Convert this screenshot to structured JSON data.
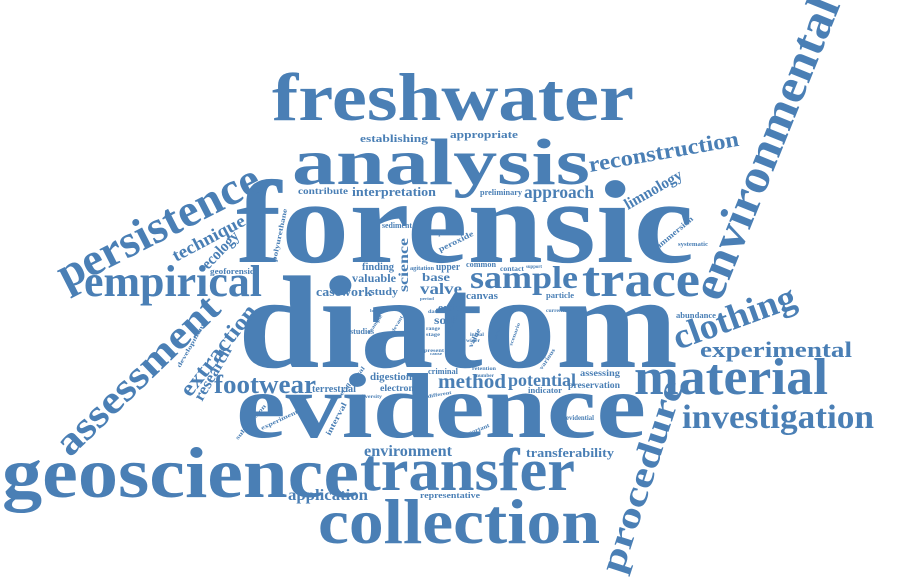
{
  "color": "#4a7fb5",
  "words": {
    "diatom": "diatom",
    "forensic": "forensic",
    "evidence": "evidence",
    "freshwater": "freshwater",
    "analysis": "analysis",
    "geoscience": "geoscience",
    "collection": "collection",
    "transfer": "transfer",
    "material": "material",
    "environmental": "environmental",
    "persistence": "persistence",
    "empirical": "empirical",
    "assessment": "assessment",
    "trace": "trace",
    "investigation": "investigation",
    "procedure": "procedure",
    "clothing": "clothing",
    "sample": "sample",
    "footwear": "footwear",
    "experimental": "experimental",
    "reconstruction": "reconstruction",
    "extraction": "extraction",
    "method": "method",
    "potential": "potential",
    "approach": "approach",
    "technique": "technique",
    "ecology": "ecology",
    "limnology": "limnology",
    "research": "research",
    "application": "application",
    "environment": "environment",
    "transferability": "transferability",
    "valve": "valve",
    "casework": "casework",
    "science": "science",
    "interpretation": "interpretation",
    "establishing": "establishing",
    "appropriate": "appropriate",
    "contribute": "contribute",
    "preliminary": "preliminary",
    "valuable": "valuable",
    "study": "study",
    "base": "base",
    "finding": "finding",
    "upper": "upper",
    "canvas": "canvas",
    "order": "order",
    "soil": "soil",
    "digestion": "digestion",
    "terrestrial": "terrestrial",
    "electron": "electron",
    "criminal": "criminal",
    "assessing": "assessing",
    "preservation": "preservation",
    "indicator": "indicator",
    "abundance": "abundance",
    "immersion": "immersion",
    "systematic": "systematic",
    "geoforensic": "geoforensic",
    "polyurethane": "polyurethane",
    "sediment": "sediment",
    "exposure": "exposure",
    "peroxide": "peroxide",
    "common": "common",
    "contact": "contact",
    "agitation": "agitation",
    "particle": "particle",
    "studies": "studies",
    "development": "development",
    "submersion": "submersion",
    "experiment": "experiment",
    "interval": "interval",
    "ecological": "ecological",
    "diversity": "diversity",
    "representative": "representative",
    "important": "important",
    "evidential": "evidential",
    "various": "various",
    "value": "value",
    "current": "current",
    "support": "support",
    "retention": "retention",
    "number": "number",
    "range": "range",
    "stage": "stage",
    "initial": "initial",
    "aquatic": "aquatic",
    "example": "example",
    "mode": "mode",
    "present": "present",
    "different": "different",
    "scenario": "scenario",
    "relevant": "relevant",
    "wider": "wider",
    "data": "data",
    "cause": "cause",
    "location": "location",
    "period": "period"
  }
}
